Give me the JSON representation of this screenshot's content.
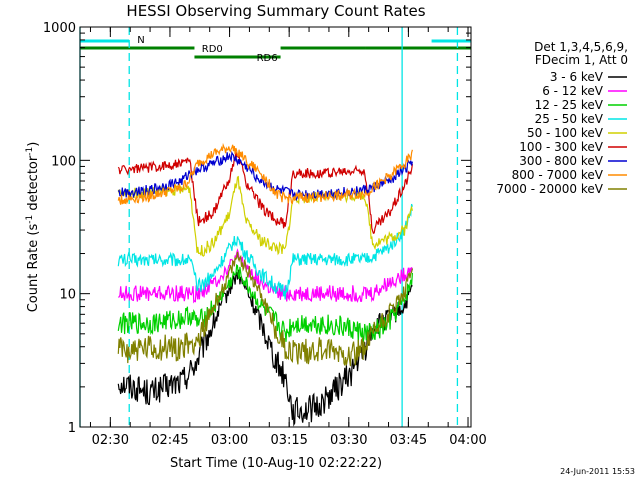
{
  "chart_data": {
    "type": "line",
    "title": "HESSI Observing Summary Count Rates",
    "xlabel": "Start Time (10-Aug-10 02:22:22)",
    "ylabel_main": "Count Rate (s",
    "ylabel_sup1": "-1",
    "ylabel_mid": " detector",
    "ylabel_sup2": "-1",
    "ylabel_end": ")",
    "yscale": "log",
    "ylim": [
      1,
      1000
    ],
    "xlim": [
      "02:22:22",
      "04:00:45"
    ],
    "x_ticks": [
      "02:30",
      "02:45",
      "03:00",
      "03:15",
      "03:30",
      "03:45",
      "04:00"
    ],
    "y_ticks": [
      "1",
      "10",
      "100",
      "1000"
    ],
    "legend_header": [
      "Det 1,3,4,5,6,9,",
      "FDecim 1, Att 0"
    ],
    "legend_position": "right-outside",
    "timestamp": "24-Jun-2011 15:53",
    "flags": [
      {
        "name": "N",
        "color": "#00e5e5",
        "segments": [
          [
            "02:22:22",
            "02:34:45"
          ],
          [
            "03:50:50",
            "04:00:45"
          ]
        ]
      },
      {
        "name": "RD0",
        "color": "#008000",
        "segments": [
          [
            "02:22:22",
            "02:51:10"
          ],
          [
            "03:12:50",
            "03:34:05"
          ],
          [
            "03:34:05",
            "04:00:45"
          ]
        ]
      },
      {
        "name": "RD6",
        "color": "#008000",
        "segments": [
          [
            "02:51:10",
            "03:12:50"
          ]
        ]
      }
    ],
    "vlines": [
      {
        "t": "02:22:22",
        "style": "solid",
        "color": "#00e5e5"
      },
      {
        "t": "02:34:45",
        "style": "dashed",
        "color": "#00e5e5"
      },
      {
        "t": "03:43:25",
        "style": "solid",
        "color": "#00e5e5"
      },
      {
        "t": "03:57:20",
        "style": "dashed",
        "color": "#00e5e5"
      }
    ],
    "x": [
      "02:32",
      "02:40",
      "02:48",
      "02:50",
      "02:52",
      "02:56",
      "03:00",
      "03:02",
      "03:04",
      "03:08",
      "03:12",
      "03:14",
      "03:16",
      "03:22",
      "03:30",
      "03:34",
      "03:36",
      "03:40",
      "03:44",
      "03:46"
    ],
    "series": [
      {
        "name": "3 - 6 keV",
        "color": "#000000",
        "values": [
          2.2,
          1.8,
          2.2,
          2.6,
          3.2,
          6,
          11,
          14,
          11,
          6,
          3,
          2.4,
          1.3,
          1.4,
          2.4,
          3.8,
          5.5,
          6.5,
          8,
          11
        ]
      },
      {
        "name": "6 - 12 keV",
        "color": "#ff00ff",
        "values": [
          10,
          10,
          10,
          10,
          10,
          12,
          16,
          19,
          16,
          12,
          10,
          10,
          10,
          10,
          10,
          10,
          10,
          12,
          14,
          16
        ]
      },
      {
        "name": "12 - 25 keV",
        "color": "#00d000",
        "values": [
          6,
          6,
          6.5,
          7,
          6,
          8,
          12,
          15,
          12,
          8,
          6,
          5,
          6,
          6,
          5.5,
          5,
          5,
          6,
          9,
          13
        ]
      },
      {
        "name": "25 - 50 keV",
        "color": "#00e5e5",
        "values": [
          18,
          18,
          18,
          18,
          11,
          14,
          22,
          26,
          20,
          14,
          11,
          10,
          18,
          18,
          18,
          18,
          19,
          22,
          30,
          45
        ]
      },
      {
        "name": "50 - 100 keV",
        "color": "#d0d000",
        "values": [
          56,
          58,
          60,
          62,
          20,
          24,
          40,
          75,
          35,
          25,
          22,
          21,
          52,
          53,
          54,
          55,
          24,
          26,
          30,
          45
        ]
      },
      {
        "name": "100 - 300 keV",
        "color": "#d00000",
        "values": [
          85,
          88,
          95,
          100,
          35,
          40,
          75,
          115,
          70,
          45,
          35,
          33,
          80,
          80,
          82,
          85,
          30,
          40,
          65,
          90
        ]
      },
      {
        "name": "300 - 800 keV",
        "color": "#0000d0",
        "values": [
          57,
          60,
          70,
          80,
          85,
          95,
          108,
          100,
          90,
          70,
          60,
          58,
          55,
          56,
          58,
          60,
          62,
          70,
          85,
          100
        ]
      },
      {
        "name": "800 - 7000 keV",
        "color": "#ff8c00",
        "values": [
          50,
          54,
          62,
          72,
          95,
          112,
          125,
          118,
          100,
          80,
          55,
          52,
          52,
          53,
          55,
          56,
          62,
          75,
          95,
          110
        ]
      },
      {
        "name": "7000 - 20000 keV",
        "color": "#808000",
        "values": [
          3.8,
          3.8,
          4,
          4.2,
          4.5,
          8,
          14,
          19,
          16,
          10,
          5,
          4,
          3.6,
          3.8,
          3.6,
          3.8,
          5,
          7,
          10,
          15
        ]
      }
    ]
  }
}
